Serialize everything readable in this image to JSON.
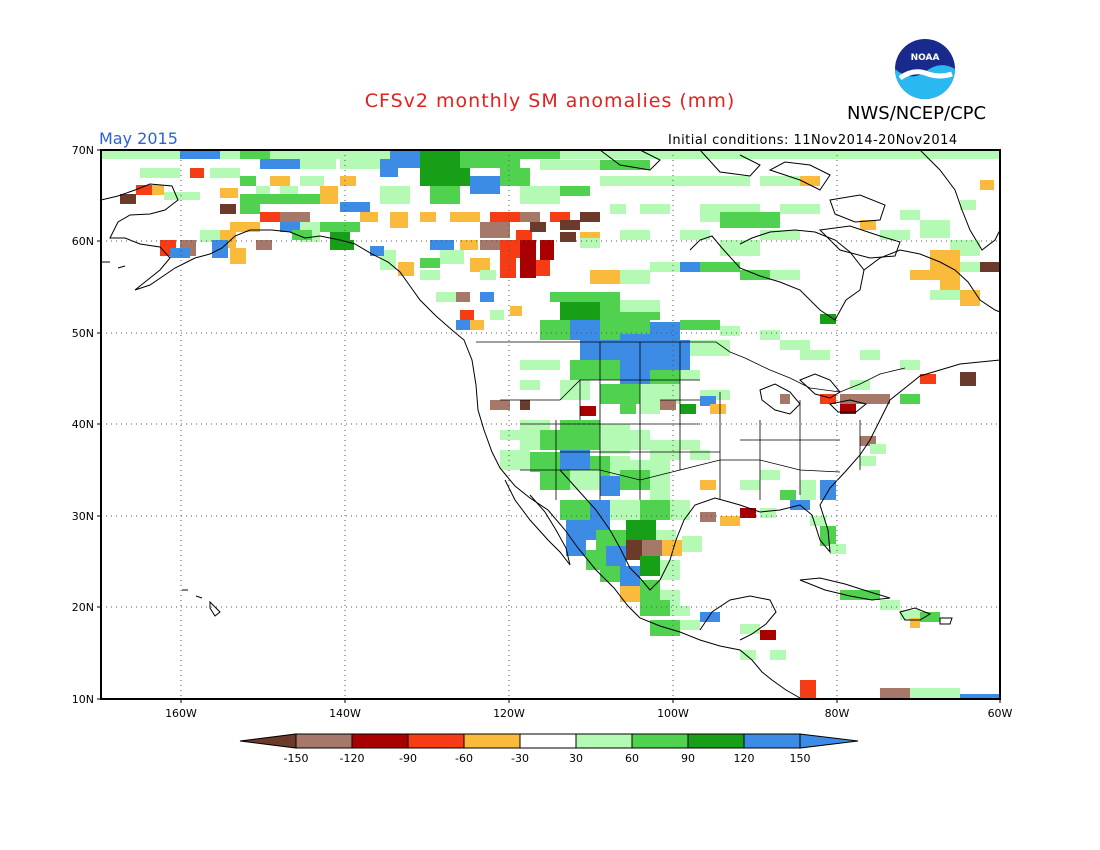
{
  "title": "CFSv2 monthly SM anomalies (mm)",
  "agency": "NWS/NCEP/CPC",
  "logo_text": "NOAA",
  "period": "May 2015",
  "initial_conditions": "Initial conditions: 11Nov2014-20Nov2014",
  "lat_labels": [
    "70N",
    "60N",
    "50N",
    "40N",
    "30N",
    "20N",
    "10N"
  ],
  "lon_labels": [
    "160W",
    "140W",
    "120W",
    "100W",
    "80W",
    "60W"
  ],
  "colorbar": {
    "tick_labels": [
      "-150",
      "-120",
      "-90",
      "-60",
      "-30",
      "30",
      "60",
      "90",
      "120",
      "150"
    ],
    "colors": [
      "#6b3a2a",
      "#a6786a",
      "#a80000",
      "#f53c14",
      "#fabb3c",
      "#ffffff",
      "#b4fab4",
      "#50d250",
      "#17a017",
      "#3c8ce6",
      "#3c8ce6"
    ]
  },
  "anomaly_colors": {
    "brown": "#6b3a2a",
    "tan": "#a6786a",
    "darkred": "#a80000",
    "red": "#f53c14",
    "orange": "#fabb3c",
    "lightgreen": "#b4fab4",
    "green": "#50d250",
    "darkgreen": "#17a017",
    "blue": "#3c8ce6"
  }
}
